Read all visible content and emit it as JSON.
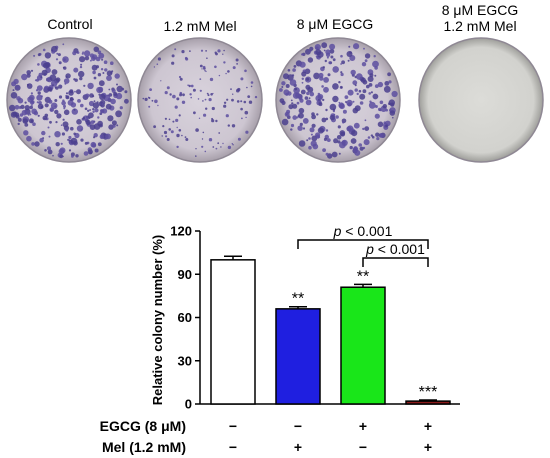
{
  "plates": [
    {
      "label_lines": [
        "Control"
      ],
      "density": 1.0
    },
    {
      "label_lines": [
        "1.2 mM Mel"
      ],
      "density": 0.45
    },
    {
      "label_lines": [
        "8 μM EGCG"
      ],
      "density": 0.85
    },
    {
      "label_lines": [
        "8 μM EGCG",
        "1.2 mM Mel"
      ],
      "density": 0.0
    }
  ],
  "chart_data": {
    "type": "bar",
    "ylabel": "Relative colony number (%)",
    "ylim": [
      0,
      120
    ],
    "yticks": [
      0,
      30,
      60,
      90,
      120
    ],
    "series": [
      {
        "values": [
          100,
          66,
          81,
          2
        ],
        "errors": [
          2.5,
          1.5,
          2.0,
          0.8
        ]
      }
    ],
    "bar_colors": [
      "#ffffff",
      "#1f1fe0",
      "#19e619",
      "#8a1a1a"
    ],
    "significance": [
      "",
      "**",
      "**",
      "***"
    ],
    "conditions": [
      {
        "name": "EGCG (8 μM)",
        "marks": [
          "−",
          "−",
          "+",
          "+"
        ]
      },
      {
        "name": "Mel (1.2 mM)",
        "marks": [
          "−",
          "+",
          "−",
          "+"
        ]
      }
    ],
    "brackets": [
      {
        "from": 1,
        "to": 3,
        "label_italic": "p",
        "label_rest": " < 0.001"
      },
      {
        "from": 2,
        "to": 3,
        "label_italic": "p",
        "label_rest": " < 0.001"
      }
    ]
  }
}
